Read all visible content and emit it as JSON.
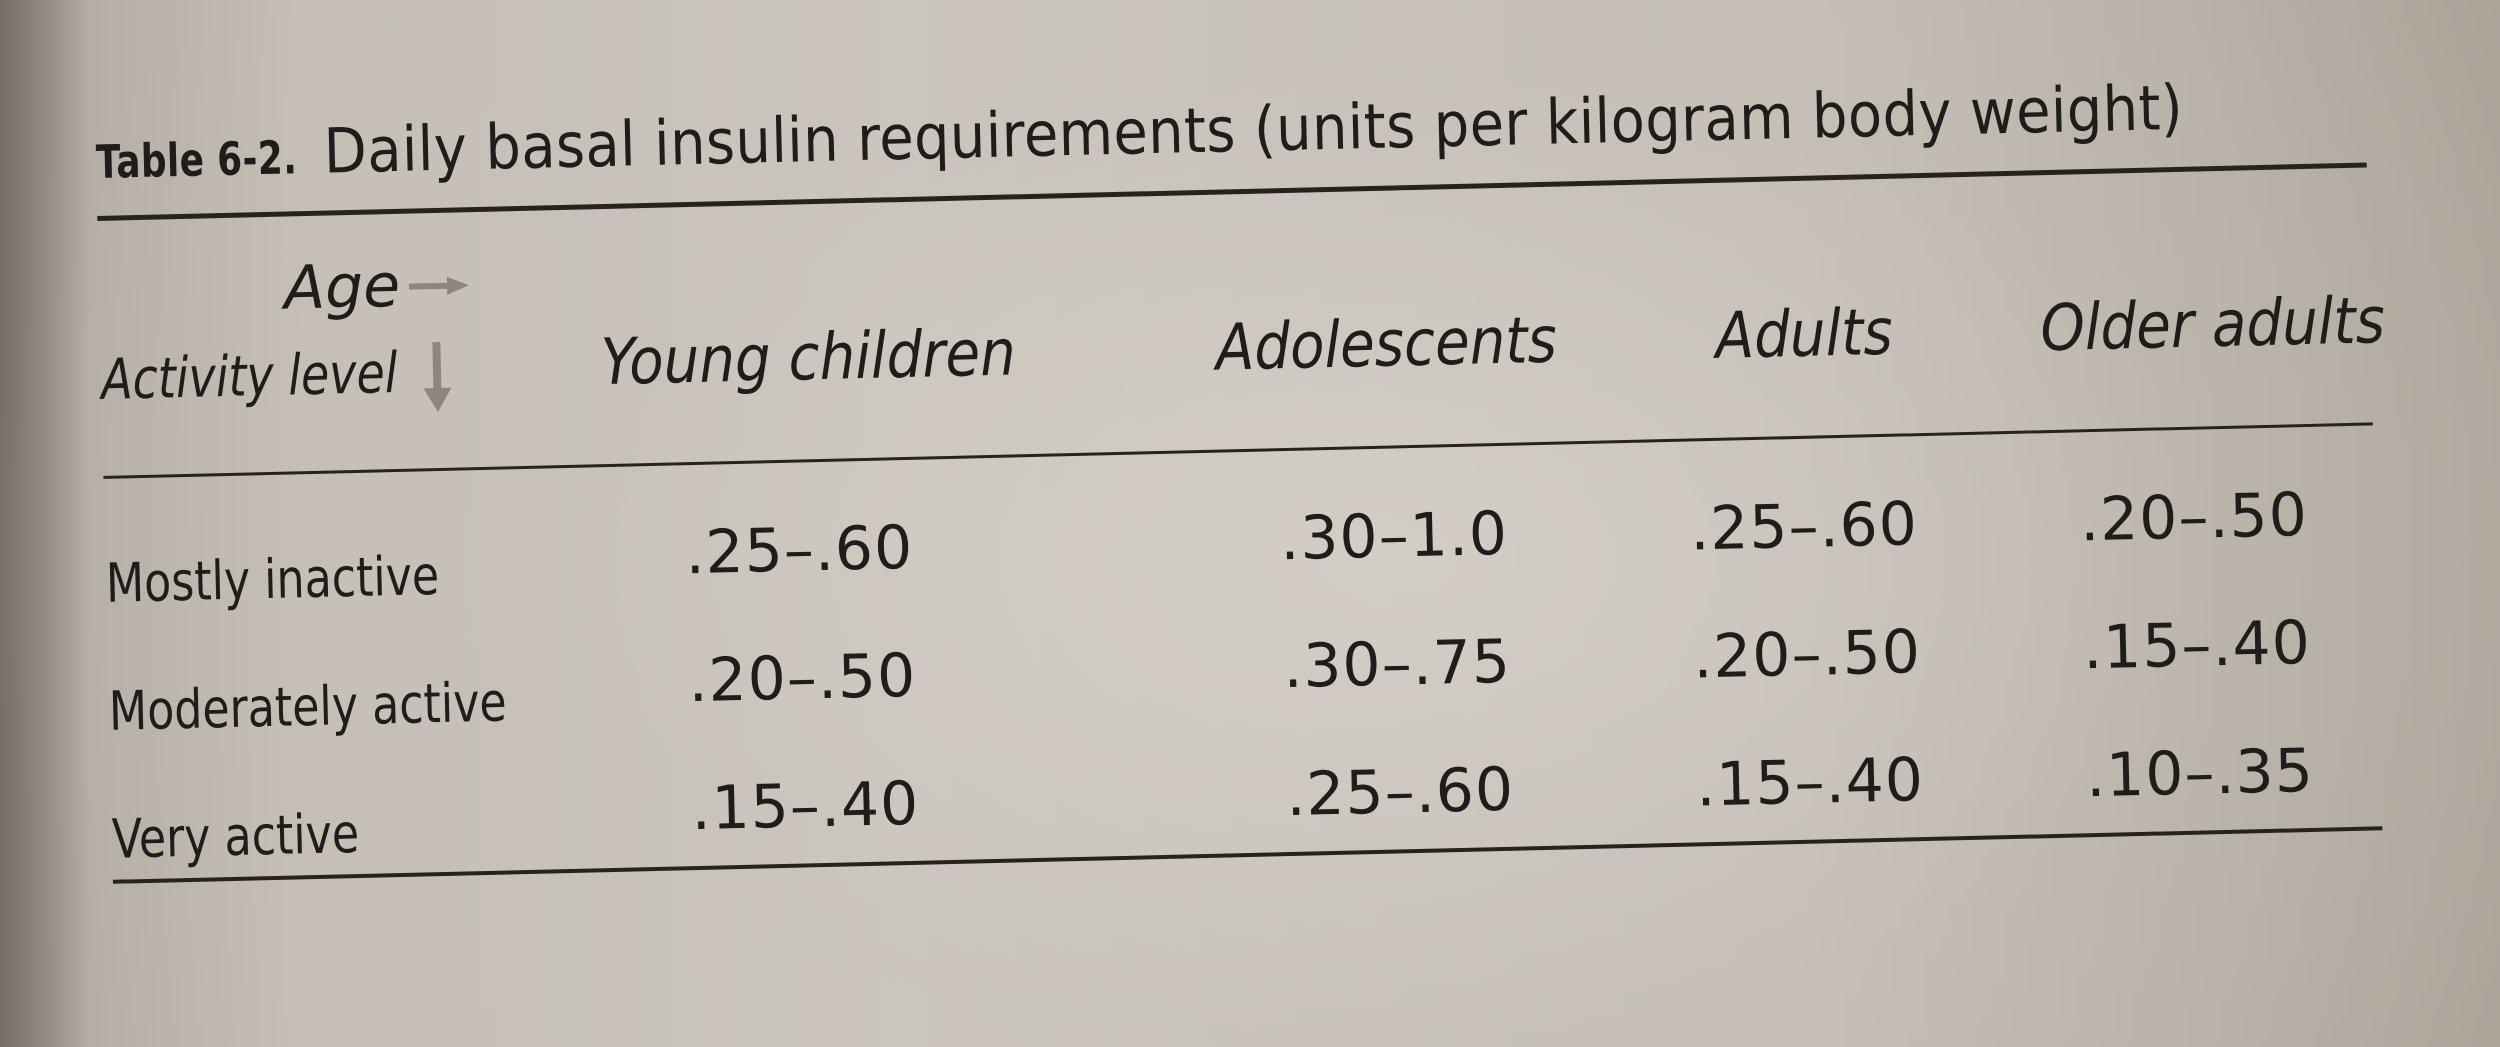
{
  "table": {
    "label": "Table 6-2.",
    "title": "Daily basal insulin requirements (units per kilogram body weight)",
    "header": {
      "age": "Age",
      "activity_level": "Activity level",
      "columns": [
        "Young children",
        "Adolescents",
        "Adults",
        "Older adults"
      ]
    },
    "rows": [
      {
        "label": "Mostly inactive",
        "values": [
          ".25–.60",
          ".30–1.0",
          ".25–.60",
          ".20–.50"
        ]
      },
      {
        "label": "Moderately active",
        "values": [
          ".20–.50",
          ".30–.75",
          ".20–.50",
          ".15–.40"
        ]
      },
      {
        "label": "Very active",
        "values": [
          ".15–.40",
          ".25–.60",
          ".15–.40",
          ".10–.35"
        ]
      }
    ]
  },
  "icons": {
    "age_arrow": "arrow-right-icon",
    "activity_arrow": "arrow-down-icon"
  },
  "colors": {
    "ink": "#1f1d1b",
    "arrow": "#8d867c",
    "paper": "#cbc6be"
  }
}
